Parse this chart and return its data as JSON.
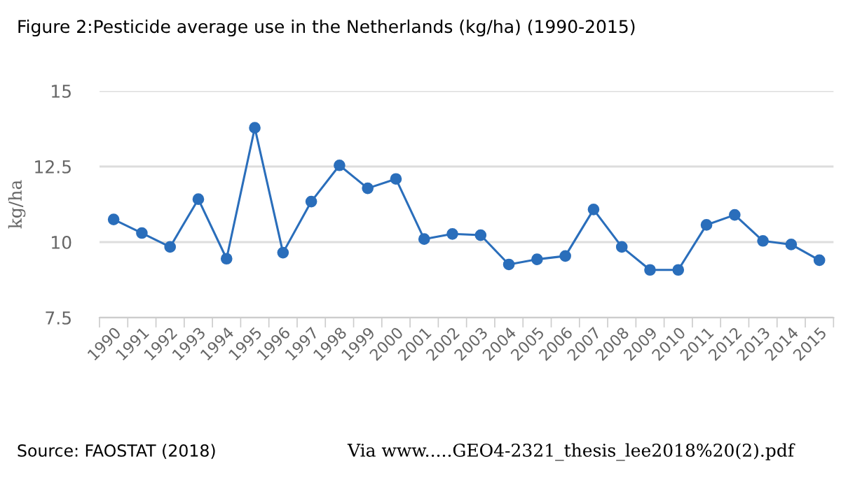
{
  "chart_data": {
    "type": "line",
    "title": "Figure 2:Pesticide average use in the Netherlands (kg/ha) (1990-2015)",
    "ylabel": "kg/ha",
    "categories": [
      "1990",
      "1991",
      "1992",
      "1993",
      "1994",
      "1995",
      "1996",
      "1997",
      "1998",
      "1999",
      "2000",
      "2001",
      "2002",
      "2003",
      "2004",
      "2005",
      "2006",
      "2007",
      "2008",
      "2009",
      "2010",
      "2011",
      "2012",
      "2013",
      "2014",
      "2015"
    ],
    "series": [
      {
        "color": "#2a6ebb",
        "values": [
          10.75,
          10.3,
          9.84,
          11.42,
          9.45,
          13.78,
          9.65,
          11.34,
          12.54,
          11.78,
          12.09,
          10.1,
          10.27,
          10.23,
          9.26,
          9.43,
          9.54,
          11.08,
          9.84,
          9.08,
          9.08,
          10.57,
          10.9,
          10.04,
          9.92,
          9.4
        ]
      }
    ],
    "ylim": [
      7.5,
      15
    ],
    "yticks": [
      7.5,
      10,
      12.5,
      15
    ],
    "grid": "y",
    "marker": "circle",
    "line_style": "solid",
    "annotations": [
      "Source: FAOSTAT (2018)",
      "Via www.....GEO4-2321_thesis_lee2018%20(2).pdf"
    ]
  }
}
